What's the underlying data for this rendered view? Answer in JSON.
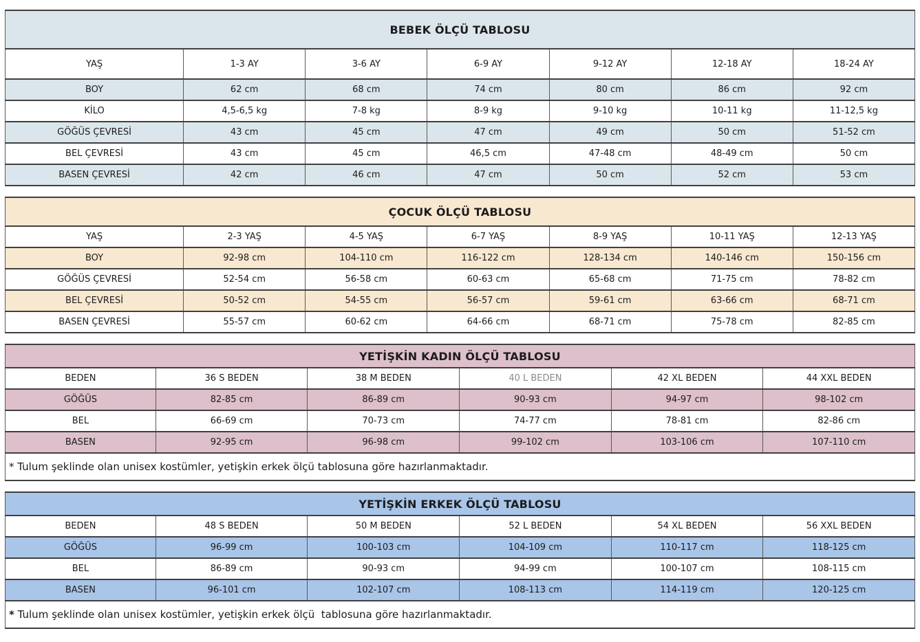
{
  "colors": {
    "bebek_band": "#dbe5ec",
    "cocuk_band": "#f8e8d0",
    "kadin_band": "#ddc0cb",
    "erkek_band": "#a9c5e8",
    "border_dark": "#3f3f3f",
    "border_gray": "#595959",
    "muted_text": "#8a8a8a"
  },
  "tables": [
    {
      "name": "bebek",
      "title": "BEBEK ÖLÇÜ TABLOSU",
      "band_color": "#dbe5ec",
      "rows": [
        {
          "label": "YAŞ",
          "values": [
            "1-3 AY",
            "3-6 AY",
            "6-9 AY",
            "9-12 AY",
            "12-18 AY",
            "18-24 AY"
          ]
        },
        {
          "label": "BOY",
          "values": [
            "62 cm",
            "68 cm",
            "74 cm",
            "80 cm",
            "86 cm",
            "92 cm"
          ]
        },
        {
          "label": "KİLO",
          "values": [
            "4,5-6,5 kg",
            "7-8 kg",
            "8-9 kg",
            "9-10 kg",
            "10-11 kg",
            "11-12,5 kg"
          ]
        },
        {
          "label": "GÖĞÜS ÇEVRESİ",
          "values": [
            "43 cm",
            "45 cm",
            "47 cm",
            "49 cm",
            "50 cm",
            "51-52 cm"
          ]
        },
        {
          "label": "BEL ÇEVRESİ",
          "values": [
            "43 cm",
            "45 cm",
            "46,5 cm",
            "47-48 cm",
            "48-49 cm",
            "50 cm"
          ]
        },
        {
          "label": "BASEN ÇEVRESİ",
          "values": [
            "42 cm",
            "46 cm",
            "47 cm",
            "50 cm",
            "52 cm",
            "53 cm"
          ]
        }
      ],
      "footnote": null
    },
    {
      "name": "cocuk",
      "title": "ÇOCUK ÖLÇÜ TABLOSU",
      "band_color": "#f8e8d0",
      "rows": [
        {
          "label": "YAŞ",
          "values": [
            "2-3 YAŞ",
            "4-5 YAŞ",
            "6-7 YAŞ",
            "8-9 YAŞ",
            "10-11 YAŞ",
            "12-13 YAŞ"
          ]
        },
        {
          "label": "BOY",
          "values": [
            "92-98 cm",
            "104-110 cm",
            "116-122 cm",
            "128-134 cm",
            "140-146 cm",
            "150-156 cm"
          ]
        },
        {
          "label": "GÖĞÜS ÇEVRESİ",
          "values": [
            "52-54 cm",
            "56-58 cm",
            "60-63 cm",
            "65-68 cm",
            "71-75 cm",
            "78-82 cm"
          ]
        },
        {
          "label": "BEL ÇEVRESİ",
          "values": [
            "50-52 cm",
            "54-55 cm",
            "56-57 cm",
            "59-61 cm",
            "63-66 cm",
            "68-71 cm"
          ]
        },
        {
          "label": "BASEN ÇEVRESİ",
          "values": [
            "55-57 cm",
            "60-62 cm",
            "64-66 cm",
            "68-71 cm",
            "75-78 cm",
            "82-85 cm"
          ]
        }
      ],
      "footnote": null
    },
    {
      "name": "kadin",
      "title": "YETİŞKİN KADIN ÖLÇÜ TABLOSU",
      "band_color": "#ddc0cb",
      "rows": [
        {
          "label": "BEDEN",
          "values": [
            "36 S BEDEN",
            "38 M BEDEN",
            "40 L BEDEN",
            "42 XL BEDEN",
            "44 XXL BEDEN"
          ],
          "muted_cols": [
            2
          ]
        },
        {
          "label": "GÖĞÜS",
          "values": [
            "82-85 cm",
            "86-89 cm",
            "90-93 cm",
            "94-97 cm",
            "98-102 cm"
          ]
        },
        {
          "label": "BEL",
          "values": [
            "66-69 cm",
            "70-73 cm",
            "74-77 cm",
            "78-81 cm",
            "82-86 cm"
          ]
        },
        {
          "label": "BASEN",
          "values": [
            "92-95 cm",
            "96-98 cm",
            "99-102 cm",
            "103-106 cm",
            "107-110 cm"
          ]
        }
      ],
      "footnote": {
        "marker": "*",
        "marker_bold": false,
        "text": " Tulum şeklinde olan unisex kostümler, yetişkin erkek ölçü tablosuna göre hazırlanmaktadır."
      }
    },
    {
      "name": "erkek",
      "title": "YETİŞKİN ERKEK ÖLÇÜ TABLOSU",
      "band_color": "#a9c5e8",
      "rows": [
        {
          "label": "BEDEN",
          "values": [
            "48 S BEDEN",
            "50 M BEDEN",
            "52 L BEDEN",
            "54 XL BEDEN",
            "56 XXL BEDEN"
          ]
        },
        {
          "label": "GÖĞÜS",
          "values": [
            "96-99 cm",
            "100-103 cm",
            "104-109 cm",
            "110-117 cm",
            "118-125 cm"
          ]
        },
        {
          "label": "BEL",
          "values": [
            "86-89 cm",
            "90-93 cm",
            "94-99 cm",
            "100-107 cm",
            "108-115 cm"
          ]
        },
        {
          "label": "BASEN",
          "values": [
            "96-101 cm",
            "102-107 cm",
            "108-113 cm",
            "114-119 cm",
            "120-125 cm"
          ]
        }
      ],
      "footnote": {
        "marker": "*",
        "marker_bold": true,
        "text": " Tulum şeklinde olan unisex kostümler, yetişkin erkek ölçü  tablosuna göre hazırlanmaktadır."
      }
    }
  ]
}
